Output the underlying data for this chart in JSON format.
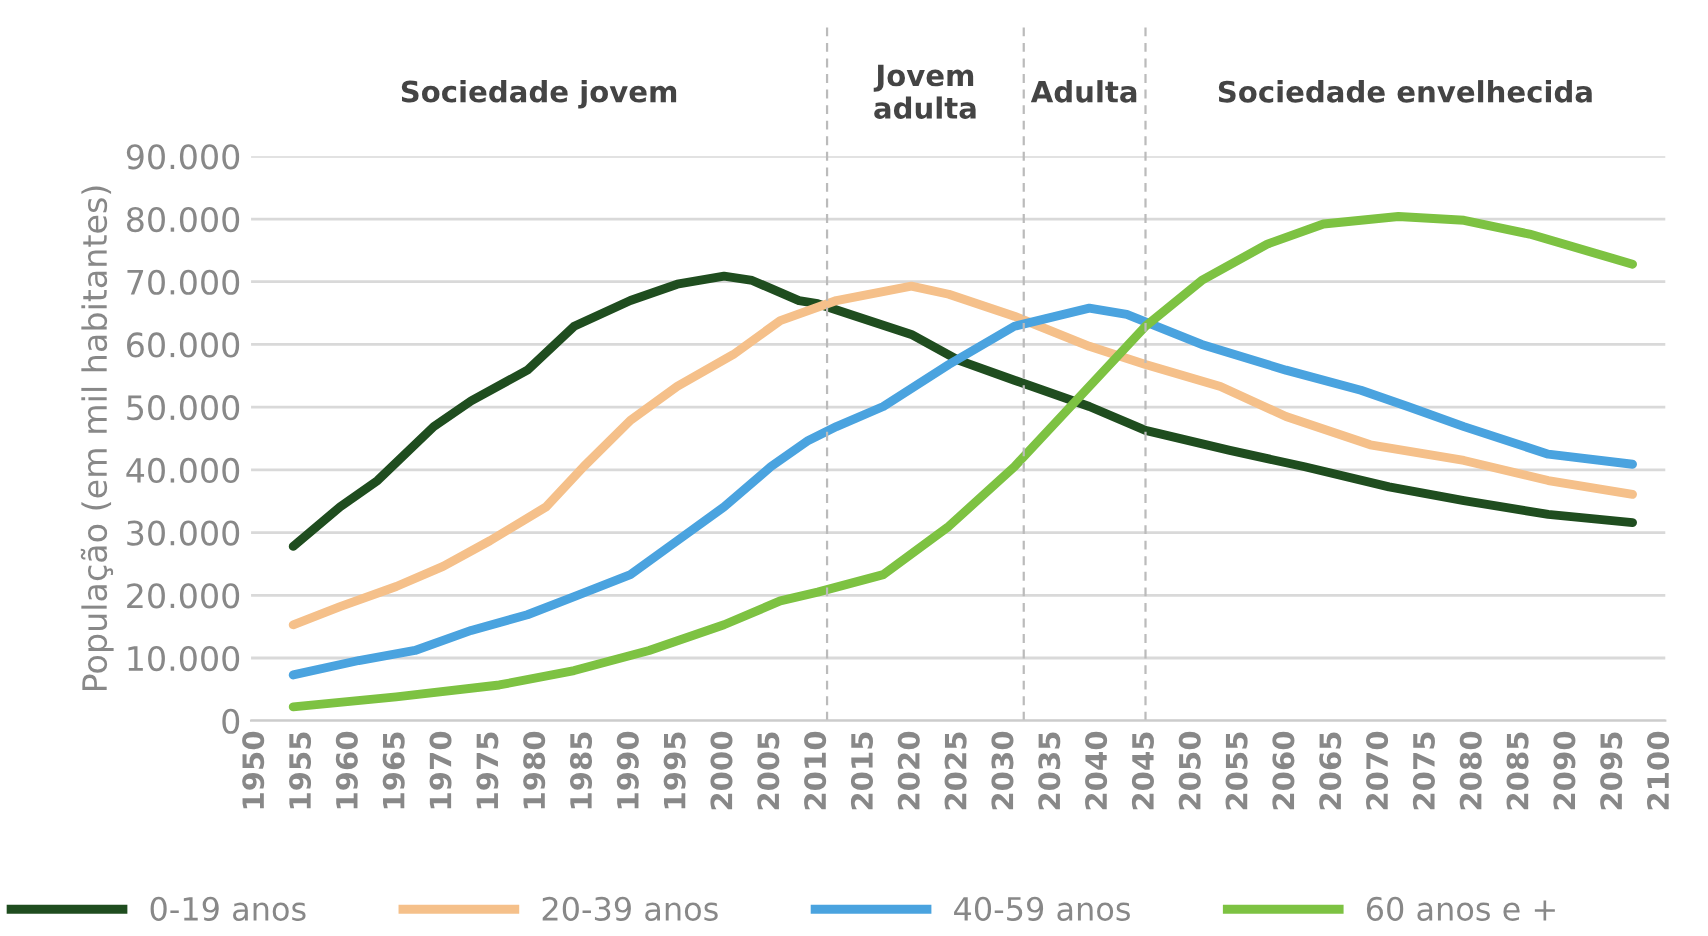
{
  "chart_data": {
    "type": "line",
    "ylabel": "População (em mil habitantes)",
    "legend": "bottom",
    "grid": "y",
    "line_style": "solid",
    "marker": "none",
    "xlim": [
      1949.5,
      2100.5
    ],
    "xticks": [
      1950,
      1955,
      1960,
      1965,
      1970,
      1975,
      1980,
      1985,
      1990,
      1995,
      2000,
      2005,
      2010,
      2015,
      2020,
      2025,
      2030,
      2035,
      2040,
      2045,
      2050,
      2055,
      2060,
      2065,
      2070,
      2075,
      2080,
      2085,
      2090,
      2095,
      2100
    ],
    "ylim": [
      0,
      90000
    ],
    "yticks": [
      {
        "value": 0,
        "label": "0"
      },
      {
        "value": 10000,
        "label": "10.000"
      },
      {
        "value": 20000,
        "label": "20.000"
      },
      {
        "value": 30000,
        "label": "30.000"
      },
      {
        "value": 40000,
        "label": "40.000"
      },
      {
        "value": 50000,
        "label": "50.000"
      },
      {
        "value": 60000,
        "label": "60.000"
      },
      {
        "value": 70000,
        "label": "70.000"
      },
      {
        "value": 80000,
        "label": "80.000"
      },
      {
        "value": 90000,
        "label": "90.000"
      }
    ],
    "ref_lines": [
      {
        "axis": "x",
        "value": 2011,
        "color": "#bbbbbb",
        "line_style": "dashed"
      },
      {
        "axis": "x",
        "value": 2032,
        "color": "#bbbbbb",
        "line_style": "dashed"
      },
      {
        "axis": "x",
        "value": 2045,
        "color": "#bbbbbb",
        "line_style": "dashed"
      }
    ],
    "annotations": [
      "Sociedade jovem",
      "Jovem\nadulta",
      "Adulta",
      "Sociedade envelhecida"
    ],
    "series": [
      {
        "name": "0-19 anos",
        "color": "#1f4d1f",
        "x": [
          1954,
          1959,
          1963,
          1969,
          1973,
          1979,
          1984,
          1990,
          1995,
          2000,
          2003,
          2008,
          2010,
          2020,
          2025,
          2031,
          2039,
          2045,
          2054,
          2062,
          2071,
          2079,
          2088,
          2097
        ],
        "values": [
          27800,
          34100,
          38300,
          46900,
          51000,
          55900,
          62900,
          67000,
          69600,
          70900,
          70200,
          67000,
          66500,
          61600,
          57500,
          54300,
          50100,
          46300,
          43100,
          40500,
          37300,
          35100,
          32900,
          31600
        ]
      },
      {
        "name": "20-39 anos",
        "color": "#f5c08a",
        "x": [
          1954,
          1959,
          1965,
          1970,
          1975,
          1981,
          1985,
          1990,
          1995,
          2001,
          2006,
          2012,
          2020,
          2024,
          2031,
          2039,
          2045,
          2053,
          2060,
          2069,
          2079,
          2088,
          2097
        ],
        "values": [
          15300,
          18200,
          21400,
          24600,
          28700,
          34100,
          40500,
          47900,
          53300,
          58400,
          63800,
          67000,
          69300,
          68000,
          64500,
          59700,
          56800,
          53300,
          48500,
          44000,
          41500,
          38300,
          36100
        ]
      },
      {
        "name": "40-59 anos",
        "color": "#4aa3df",
        "x": [
          1954,
          1961,
          1967,
          1973,
          1979,
          1984,
          1990,
          1995,
          2000,
          2005,
          2009,
          2012,
          2017,
          2024,
          2031,
          2039,
          2043,
          2051,
          2060,
          2068,
          2073,
          2079,
          2088,
          2097
        ],
        "values": [
          7300,
          9600,
          11200,
          14400,
          16900,
          19800,
          23300,
          28700,
          34100,
          40500,
          44700,
          46900,
          50100,
          56800,
          62900,
          65800,
          64800,
          60000,
          55900,
          52700,
          50100,
          46900,
          42500,
          40900
        ]
      },
      {
        "name": "60 anos e +",
        "color": "#7dc242",
        "x": [
          1954,
          1965,
          1976,
          1984,
          1992,
          2000,
          2006,
          2010,
          2017,
          2024,
          2031,
          2038,
          2045,
          2051,
          2058,
          2064,
          2072,
          2079,
          2086,
          2097
        ],
        "values": [
          2200,
          3800,
          5700,
          8000,
          11200,
          15300,
          19100,
          20500,
          23300,
          31000,
          40500,
          51700,
          62900,
          70200,
          76000,
          79200,
          80400,
          79800,
          77600,
          72800
        ]
      }
    ]
  }
}
